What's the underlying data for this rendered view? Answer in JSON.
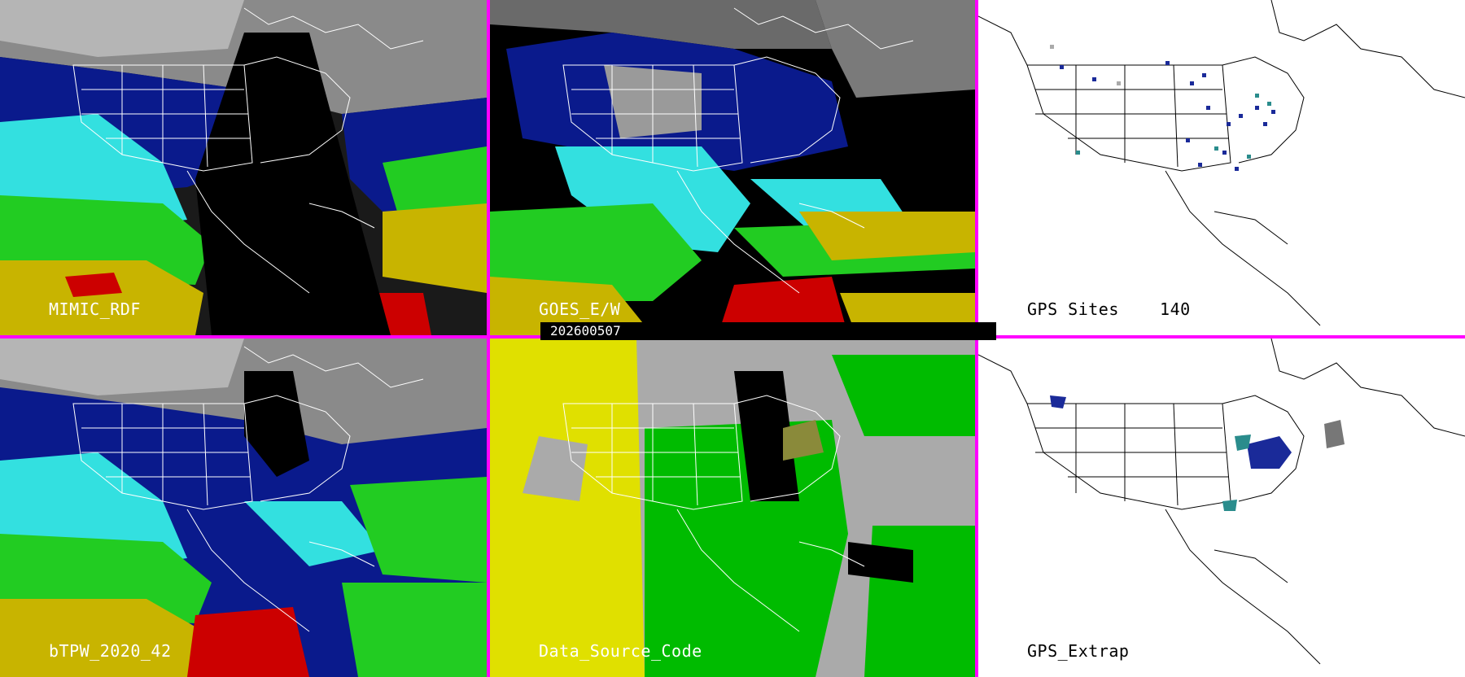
{
  "panels": {
    "mimic": {
      "label": "MIMIC_RDF"
    },
    "goes": {
      "label": "GOES_E/W"
    },
    "gps_sites": {
      "label": "GPS Sites",
      "count": "140"
    },
    "btpw": {
      "label": "bTPW_2020_42"
    },
    "dsc": {
      "label": "Data_Source_Code"
    },
    "gps_extrap": {
      "label": "GPS_Extrap"
    }
  },
  "timestamp": "202600507",
  "colors": {
    "border": "#ff00ff",
    "tpw_blue": "#0a1a8c",
    "tpw_cyan": "#33e0e0",
    "tpw_green": "#22cc22",
    "tpw_yellow": "#c8b400",
    "tpw_red": "#cc0000",
    "source_yellow": "#e0e000",
    "source_green": "#00bb00",
    "source_gray": "#aaaaaa",
    "site_blue": "#1a2a99",
    "site_teal": "#2a8c8c"
  }
}
